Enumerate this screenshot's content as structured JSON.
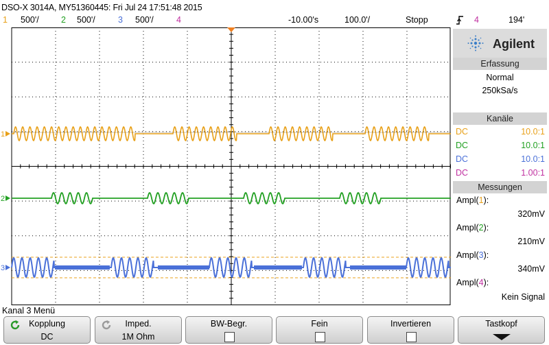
{
  "header": {
    "title": "DSO-X 3014A, MY51360445: Fri Jul 24 17:51:48 2015",
    "channels": [
      {
        "num": "1",
        "scale": "500'/",
        "color": "#e8a018"
      },
      {
        "num": "2",
        "scale": "500'/",
        "color": "#22a022"
      },
      {
        "num": "3",
        "scale": "500'/",
        "color": "#4a70d8"
      },
      {
        "num": "4",
        "scale": "",
        "color": "#c030a0"
      }
    ],
    "time_offset": "-10.00's",
    "timebase": "100.0'/",
    "run_state": "Stopp",
    "trigger_icon": "trigger-edge-icon",
    "trigger_source": "4",
    "trigger_level": "194'"
  },
  "panel": {
    "brand": "Agilent",
    "acquisition_title": "Erfassung",
    "acquisition_mode": "Normal",
    "sample_rate": "250kSa/s",
    "channels_title": "Kanäle",
    "channels": [
      {
        "coupling": "DC",
        "probe": "10.0:1",
        "color": "#e8a018"
      },
      {
        "coupling": "DC",
        "probe": "10.0:1",
        "color": "#22a022"
      },
      {
        "coupling": "DC",
        "probe": "10.0:1",
        "color": "#4a70d8"
      },
      {
        "coupling": "DC",
        "probe": "1.00:1",
        "color": "#c030a0"
      }
    ],
    "measurements_title": "Messungen",
    "measurements": [
      {
        "prefix": "Ampl(",
        "ch": "1",
        "suffix": "):",
        "value": "320mV",
        "color": "#e8a018"
      },
      {
        "prefix": "Ampl(",
        "ch": "2",
        "suffix": "):",
        "value": "210mV",
        "color": "#22a022"
      },
      {
        "prefix": "Ampl(",
        "ch": "3",
        "suffix": "):",
        "value": "340mV",
        "color": "#4a70d8"
      },
      {
        "prefix": "Ampl(",
        "ch": "4",
        "suffix": "):",
        "value": "Kein Signal",
        "color": "#c030a0"
      }
    ]
  },
  "menu": {
    "title": "Kanal 3 Menü",
    "softkeys": [
      {
        "label": "Kopplung",
        "value": "DC",
        "icon": "rotate-knob-icon"
      },
      {
        "label": "Imped.",
        "value": "1M Ohm",
        "icon": "rotate-knob-icon"
      },
      {
        "label": "BW-Begr.",
        "value": ""
      },
      {
        "label": "Fein",
        "value": ""
      },
      {
        "label": "Invertieren",
        "value": ""
      },
      {
        "label": "Tastkopf",
        "value": ""
      }
    ]
  },
  "markers": {
    "ch1": "1",
    "ch2": "2",
    "ch3": "3"
  }
}
